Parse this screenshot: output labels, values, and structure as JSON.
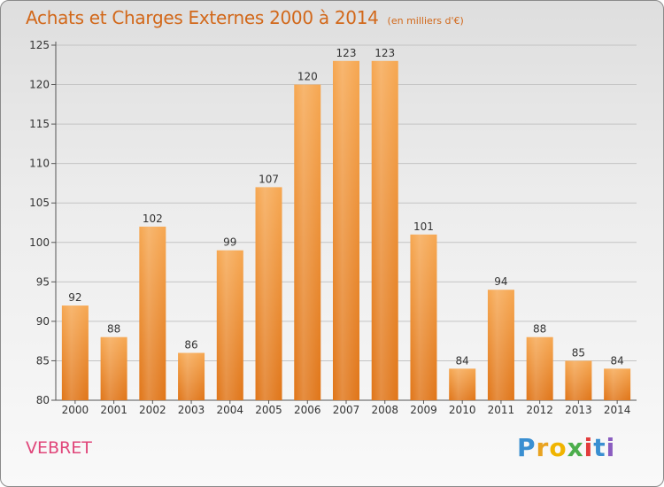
{
  "title": "Achats et Charges Externes 2000 à 2014",
  "unit": "(en milliers d'€)",
  "commune": "VEBRET",
  "logo": {
    "letters": [
      "P",
      "r",
      "o",
      "x",
      "i",
      "t",
      "i"
    ],
    "colors": [
      "#3a8fd1",
      "#e9a321",
      "#f0b400",
      "#4cae4c",
      "#e23c3c",
      "#3a8fd1",
      "#8a5cc0"
    ]
  },
  "chart_data": {
    "type": "bar",
    "title": "Achats et Charges Externes 2000 à 2014",
    "categories": [
      "2000",
      "2001",
      "2002",
      "2003",
      "2004",
      "2005",
      "2006",
      "2007",
      "2008",
      "2009",
      "2010",
      "2011",
      "2012",
      "2013",
      "2014"
    ],
    "values": [
      92,
      88,
      102,
      86,
      99,
      107,
      120,
      123,
      123,
      101,
      84,
      94,
      88,
      85,
      84
    ],
    "data_labels": [
      "92",
      "88",
      "102",
      "86",
      "99",
      "107",
      "120",
      "123",
      "123",
      "101",
      "84",
      "94",
      "88",
      "85",
      "84"
    ],
    "yticks": [
      80,
      85,
      90,
      95,
      100,
      105,
      110,
      115,
      120,
      125
    ],
    "ylim": [
      80,
      125
    ],
    "grid": true,
    "bar_color": "#f0902e"
  }
}
